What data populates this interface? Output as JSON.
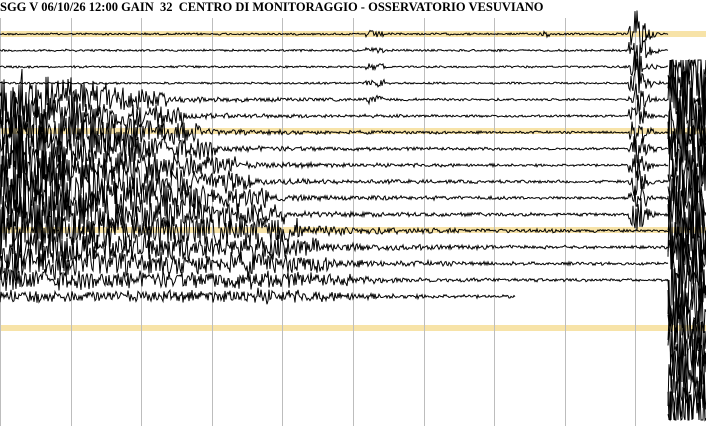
{
  "header": {
    "title": "SGG V 06/10/26 12:00 GAIN  32  CENTRO DI MONITORAGGIO - OSSERVATORIO VESUVIANO"
  }
}
